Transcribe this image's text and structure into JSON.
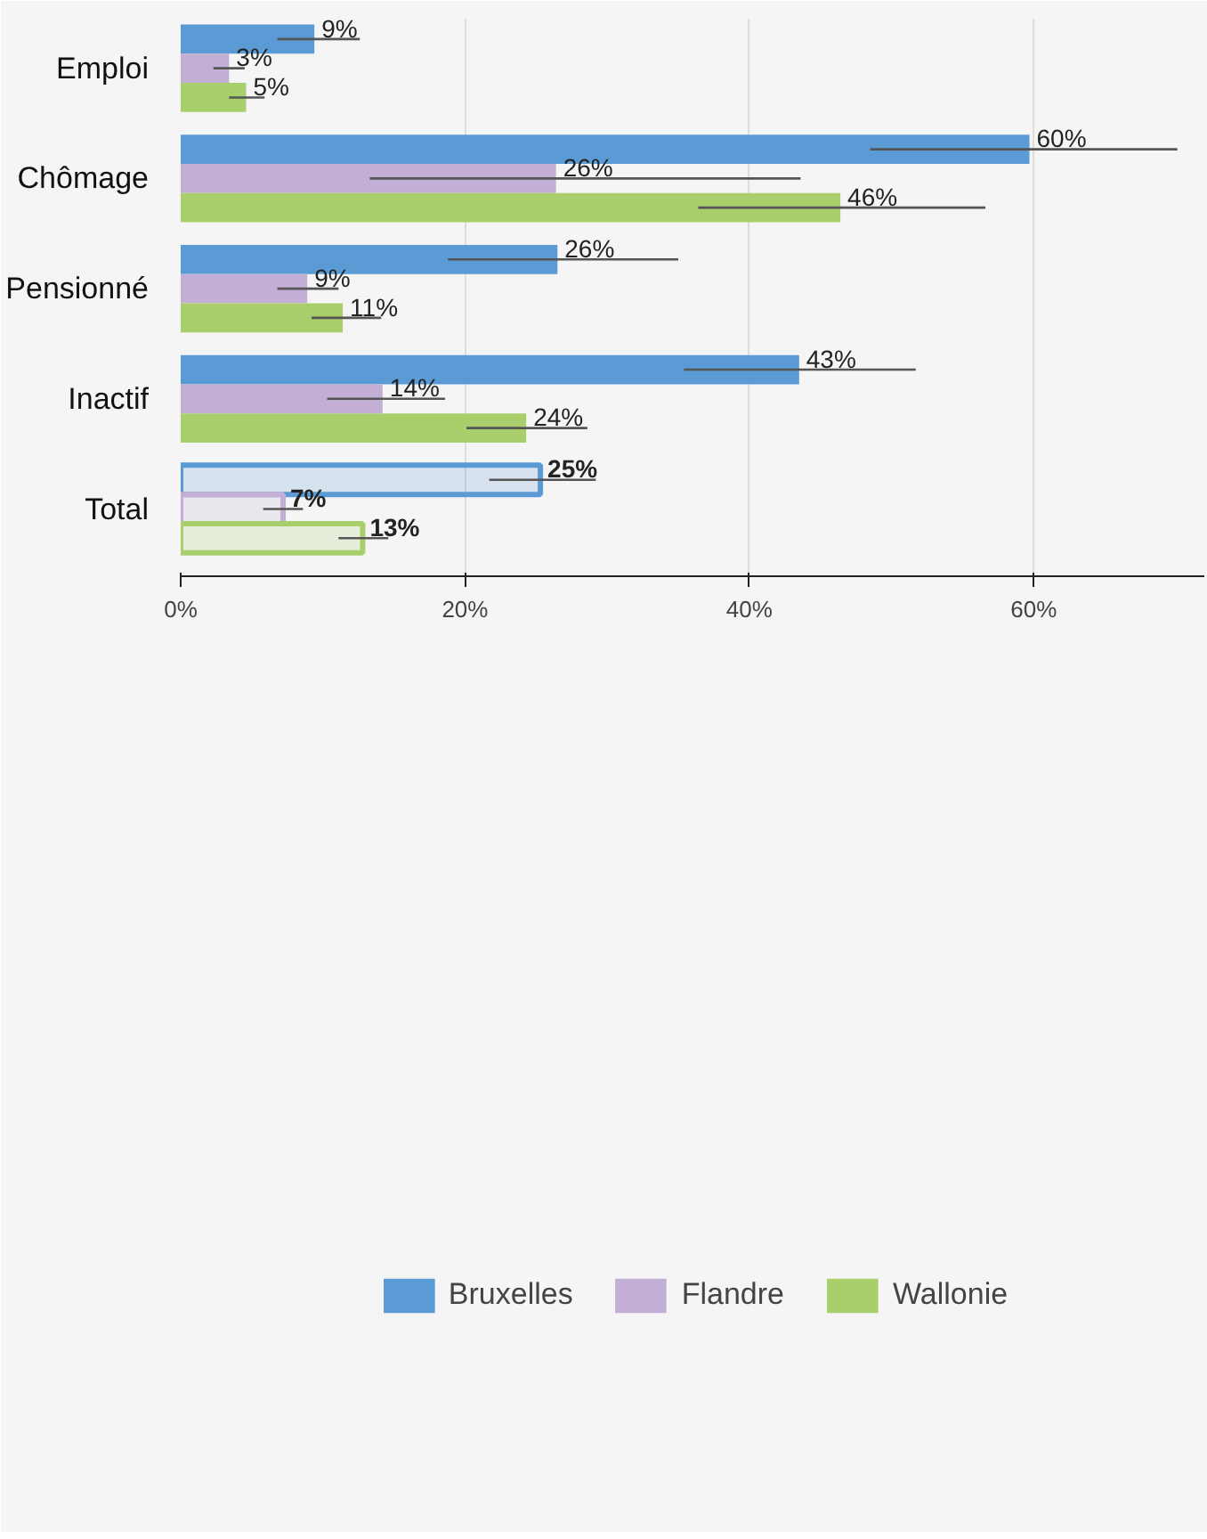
{
  "chart_data": {
    "type": "bar",
    "orientation": "horizontal",
    "categories": [
      "Emploi",
      "Chômage",
      "Pensionné",
      "Inactif",
      "Total"
    ],
    "series": [
      {
        "name": "Bruxelles",
        "color": "#5b9bd5",
        "values": [
          9.4,
          59.7,
          26.5,
          43.5,
          25.3
        ],
        "errors": [
          [
            6.8,
            12.6
          ],
          [
            48.5,
            70.1
          ],
          [
            18.8,
            35.0
          ],
          [
            35.4,
            51.7
          ],
          [
            21.7,
            29.2
          ]
        ],
        "value_labels": [
          "9%",
          "60%",
          "26%",
          "43%",
          "25%"
        ]
      },
      {
        "name": "Flandre",
        "color": "#c3aed6",
        "values": [
          3.4,
          26.4,
          8.9,
          14.2,
          7.2
        ],
        "errors": [
          [
            2.3,
            4.5
          ],
          [
            13.3,
            43.6
          ],
          [
            6.8,
            11.1
          ],
          [
            10.3,
            18.6
          ],
          [
            5.8,
            8.6
          ]
        ],
        "value_labels": [
          "3%",
          "26%",
          "9%",
          "14%",
          "7%"
        ]
      },
      {
        "name": "Wallonie",
        "color": "#a9cf6c",
        "values": [
          4.6,
          46.4,
          11.4,
          24.3,
          12.8
        ],
        "errors": [
          [
            3.4,
            5.9
          ],
          [
            36.4,
            56.6
          ],
          [
            9.2,
            14.1
          ],
          [
            20.1,
            28.6
          ],
          [
            11.1,
            14.6
          ]
        ],
        "value_labels": [
          "5%",
          "46%",
          "11%",
          "24%",
          "13%"
        ]
      }
    ],
    "xlim": [
      0,
      72
    ],
    "xticks": [
      {
        "value": 0,
        "label": "0%"
      },
      {
        "value": 20,
        "label": "20%"
      },
      {
        "value": 40,
        "label": "40%"
      },
      {
        "value": 60,
        "label": "60%"
      }
    ],
    "grid": "x",
    "legend": "bottom"
  }
}
